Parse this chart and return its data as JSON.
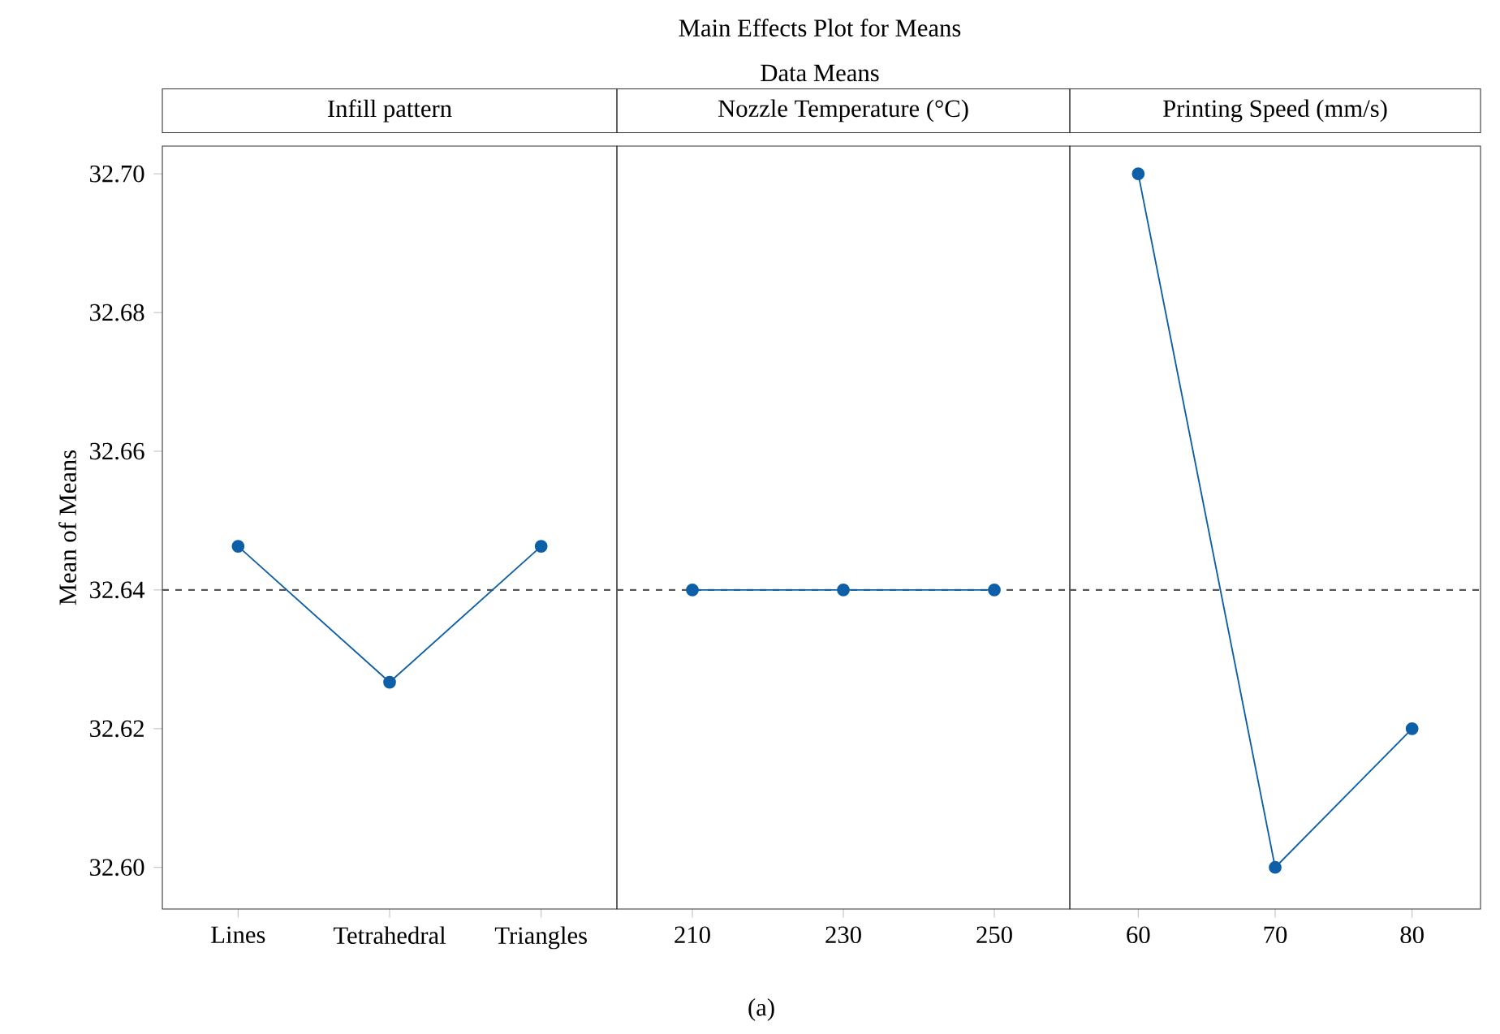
{
  "chart_data": [
    {
      "type": "line",
      "title": "Infill pattern",
      "ylabel": "Mean of Means",
      "annotations": [
        "Main Effects Plot for Means",
        "Data Means",
        "(a)"
      ],
      "categories": [
        "Lines",
        "Tetrahedral",
        "Triangles"
      ],
      "series": [
        {
          "color": "#0d5fa8",
          "values": [
            32.6463,
            32.6267,
            32.6463
          ]
        }
      ],
      "ylim": [
        32.594,
        32.704
      ],
      "yticks": [
        {
          "value": 32.6,
          "label": "32.60"
        },
        {
          "value": 32.62,
          "label": "32.62"
        },
        {
          "value": 32.64,
          "label": "32.64"
        },
        {
          "value": 32.66,
          "label": "32.66"
        },
        {
          "value": 32.68,
          "label": "32.68"
        },
        {
          "value": 32.7,
          "label": "32.70"
        }
      ],
      "ref_lines": [
        {
          "axis": "y",
          "value": 32.64,
          "color": "#555555",
          "line_style": "dashed"
        }
      ],
      "marker": "circle",
      "line_style": "solid"
    },
    {
      "type": "line",
      "title": "Nozzle Temperature (°C)",
      "categories": [
        "210",
        "230",
        "250"
      ],
      "series": [
        {
          "color": "#0d5fa8",
          "values": [
            32.64,
            32.64,
            32.64
          ]
        }
      ],
      "ylim": [
        32.594,
        32.704
      ],
      "tick_labels": "x",
      "ref_lines": [
        {
          "axis": "y",
          "value": 32.64,
          "color": "#555555",
          "line_style": "dashed"
        }
      ],
      "marker": "circle",
      "line_style": "solid"
    },
    {
      "type": "line",
      "title": "Printing Speed (mm/s)",
      "categories": [
        "60",
        "70",
        "80"
      ],
      "series": [
        {
          "color": "#0d5fa8",
          "values": [
            32.7,
            32.6,
            32.62
          ]
        }
      ],
      "ylim": [
        32.594,
        32.704
      ],
      "tick_labels": "x",
      "ref_lines": [
        {
          "axis": "y",
          "value": 32.64,
          "color": "#555555",
          "line_style": "dashed"
        }
      ],
      "marker": "circle",
      "line_style": "solid"
    }
  ]
}
